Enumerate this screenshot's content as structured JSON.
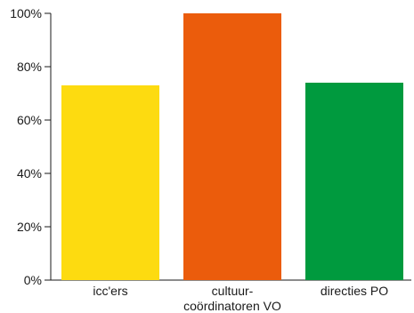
{
  "chart_data": {
    "type": "bar",
    "categories": [
      [
        "icc'ers"
      ],
      [
        "cultuur-",
        "coördinatoren VO"
      ],
      [
        "directies PO"
      ]
    ],
    "values": [
      73,
      100,
      74
    ],
    "colors": [
      "#FDDB10",
      "#EB5C0C",
      "#009A3E"
    ],
    "ylim": [
      0,
      100
    ],
    "yticks": [
      0,
      20,
      40,
      60,
      80,
      100
    ],
    "ytick_labels": [
      "0%",
      "20%",
      "40%",
      "60%",
      "80%",
      "100%"
    ],
    "grid": false,
    "legend": false,
    "title": "",
    "xlabel": "",
    "ylabel": ""
  }
}
